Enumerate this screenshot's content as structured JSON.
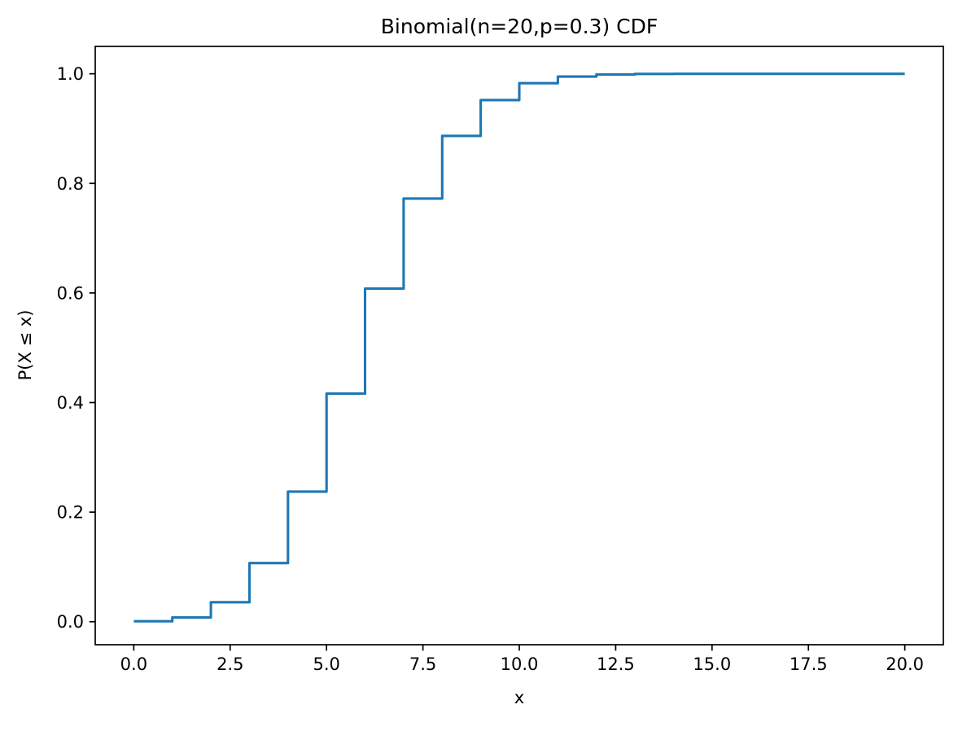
{
  "figure": {
    "background_color": "#ffffff",
    "axis_color": "#000000",
    "text_color": "#000000"
  },
  "chart_data": {
    "type": "line",
    "line_style": "step-post",
    "title": "Binomial(n=20,p=0.3) CDF",
    "xlabel": "x",
    "ylabel": "P(X ≤ x)",
    "x": [
      0,
      1,
      2,
      3,
      4,
      5,
      6,
      7,
      8,
      9,
      10,
      11,
      12,
      13,
      14,
      15,
      16,
      17,
      18,
      19,
      20
    ],
    "y": [
      0.000798,
      0.007637,
      0.035483,
      0.107087,
      0.237508,
      0.416371,
      0.60801,
      0.772272,
      0.886669,
      0.952038,
      0.982855,
      0.994862,
      0.998722,
      0.999739,
      0.999958,
      0.999995,
      0.999999,
      1.0,
      1.0,
      1.0,
      1.0
    ],
    "xlim": [
      -1,
      21
    ],
    "ylim": [
      -0.042,
      1.05
    ],
    "xticks": {
      "values": [
        0,
        2.5,
        5,
        7.5,
        10,
        12.5,
        15,
        17.5,
        20
      ],
      "labels": [
        "0.0",
        "2.5",
        "5.0",
        "7.5",
        "10.0",
        "12.5",
        "15.0",
        "17.5",
        "20.0"
      ]
    },
    "yticks": {
      "values": [
        0,
        0.2,
        0.4,
        0.6,
        0.8,
        1.0
      ],
      "labels": [
        "0.0",
        "0.2",
        "0.4",
        "0.6",
        "0.8",
        "1.0"
      ]
    },
    "grid": false,
    "legend": null,
    "line_color": "#1f77b4",
    "line_width": 3.1
  }
}
